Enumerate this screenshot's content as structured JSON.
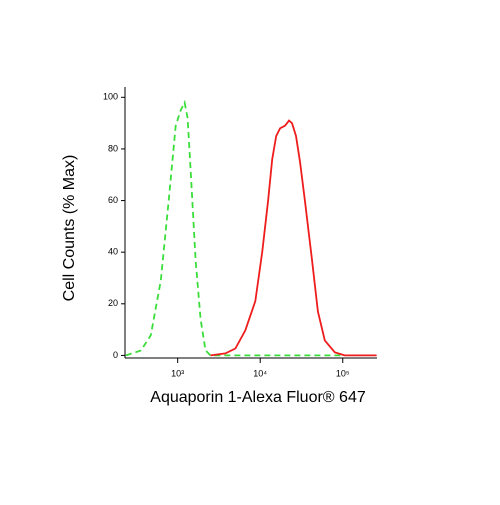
{
  "chart_data": {
    "type": "line",
    "xlabel": "Aquaporin 1-Alexa Fluor® 647",
    "ylabel": "Cell Counts (% Max)",
    "xscale": "log",
    "xlim": [
      230,
      260000
    ],
    "ylim": [
      -1,
      104
    ],
    "xticks": [
      {
        "value": 1000,
        "label": "10³"
      },
      {
        "value": 10000,
        "label": "10⁴"
      },
      {
        "value": 100000,
        "label": "10⁵"
      }
    ],
    "yticks": [
      0,
      20,
      40,
      60,
      80,
      100
    ],
    "series": [
      {
        "color": "#3add3a",
        "line_style": "dashed",
        "x": [
          236,
          358,
          473,
          624,
          779,
          946,
          1087,
          1214,
          1319,
          1434,
          1648,
          1893,
          2175,
          2500,
          5000,
          20000,
          105700
        ],
        "values": [
          0,
          1.9,
          7.8,
          29,
          60,
          89,
          95,
          98,
          92,
          72,
          37,
          14,
          2,
          0,
          0,
          0,
          0
        ]
      },
      {
        "color": "#ee1c1c",
        "line_style": "solid",
        "x": [
          2500,
          3786,
          5000,
          6593,
          8710,
          10570,
          12470,
          13960,
          15600,
          17420,
          20000,
          22340,
          24300,
          27160,
          30340,
          34830,
          42360,
          50000,
          60670,
          80170,
          105700,
          257000
        ],
        "values": [
          0,
          0.8,
          2.7,
          9.7,
          21,
          40,
          60,
          76,
          85,
          88,
          89,
          91,
          90,
          85,
          75,
          60,
          37,
          17,
          5.8,
          1.2,
          0,
          0
        ]
      }
    ]
  }
}
